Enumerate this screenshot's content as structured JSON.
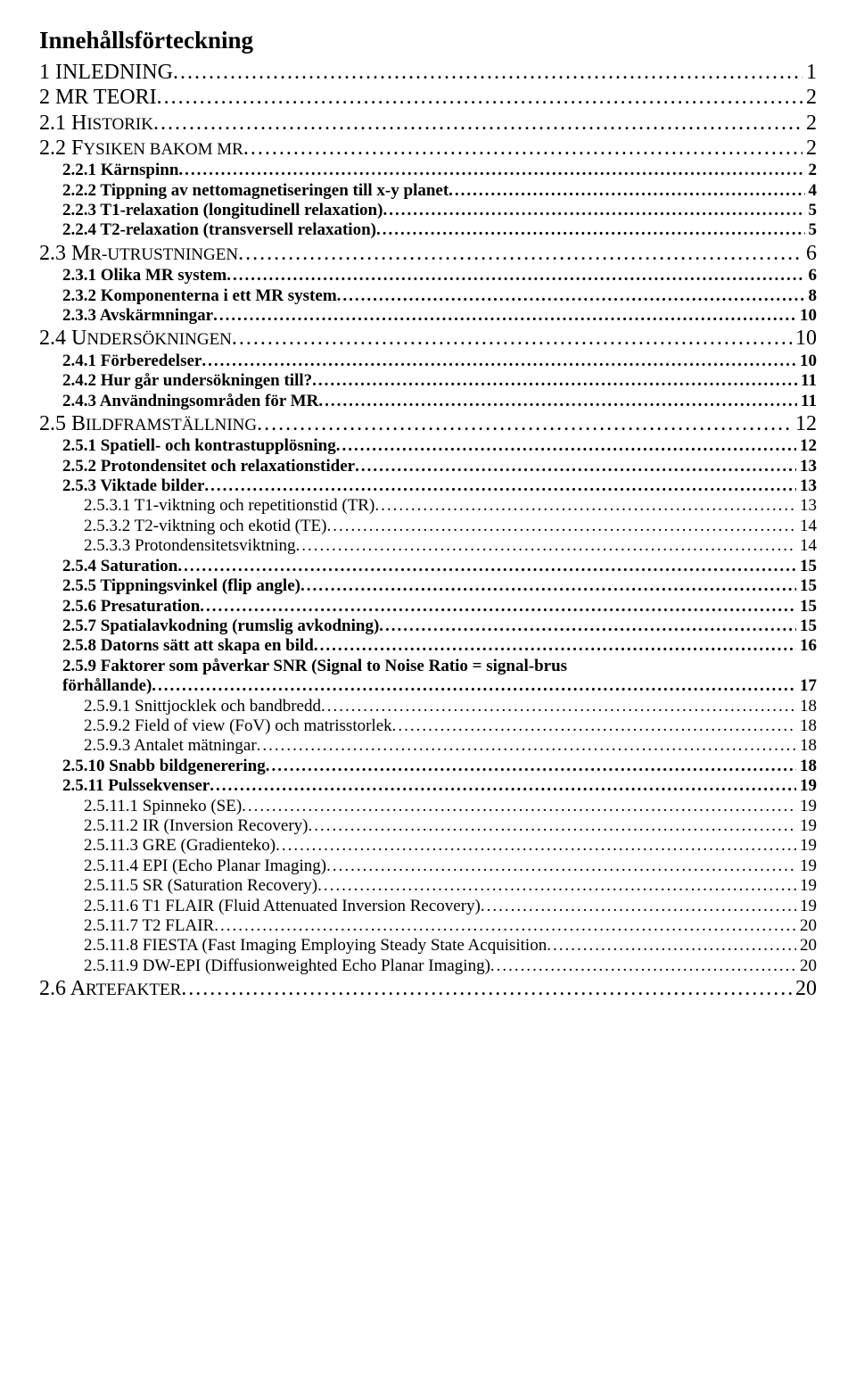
{
  "title": "Innehållsförteckning",
  "entries": [
    {
      "lvl": 0,
      "label": "1 INLEDNING",
      "page": "1"
    },
    {
      "lvl": 0,
      "label": "2 MR TEORI",
      "page": "2"
    },
    {
      "lvl": 1,
      "sc": true,
      "num": "2.1",
      "text": "HISTORIK",
      "page": "2"
    },
    {
      "lvl": 1,
      "sc": true,
      "num": "2.2",
      "text": "FYSIKEN BAKOM MR",
      "page": "2"
    },
    {
      "lvl": 2,
      "label": "2.2.1 Kärnspinn",
      "page": "2"
    },
    {
      "lvl": 2,
      "label": "2.2.2 Tippning av nettomagnetiseringen till x-y planet",
      "page": "4"
    },
    {
      "lvl": 2,
      "label": "2.2.3 T1-relaxation (longitudinell relaxation)",
      "page": "5"
    },
    {
      "lvl": 2,
      "label": "2.2.4 T2-relaxation (transversell relaxation)",
      "page": "5"
    },
    {
      "lvl": 1,
      "sc": true,
      "num": "2.3",
      "text": "MR-UTRUSTNINGEN",
      "page": "6"
    },
    {
      "lvl": 2,
      "label": "2.3.1 Olika MR system",
      "page": "6"
    },
    {
      "lvl": 2,
      "label": "2.3.2 Komponenterna i ett MR system",
      "page": "8"
    },
    {
      "lvl": 2,
      "label": "2.3.3 Avskärmningar",
      "page": "10"
    },
    {
      "lvl": 1,
      "sc": true,
      "num": "2.4",
      "text": "UNDERSÖKNINGEN",
      "page": "10"
    },
    {
      "lvl": 2,
      "label": "2.4.1 Förberedelser",
      "page": "10"
    },
    {
      "lvl": 2,
      "label": "2.4.2 Hur går undersökningen till?",
      "page": "11"
    },
    {
      "lvl": 2,
      "label": "2.4.3 Användningsområden för MR",
      "page": "11"
    },
    {
      "lvl": 1,
      "sc": true,
      "num": "2.5",
      "text": "BILDFRAMSTÄLLNING",
      "page": "12"
    },
    {
      "lvl": 2,
      "label": "2.5.1 Spatiell- och kontrastupplösning",
      "page": "12"
    },
    {
      "lvl": 2,
      "label": "2.5.2 Protondensitet och relaxationstider",
      "page": "13"
    },
    {
      "lvl": 2,
      "label": "2.5.3 Viktade bilder",
      "page": "13"
    },
    {
      "lvl": 3,
      "label": "2.5.3.1 T1-viktning och repetitionstid (TR)",
      "page": "13"
    },
    {
      "lvl": 3,
      "label": "2.5.3.2 T2-viktning och ekotid (TE)",
      "page": "14"
    },
    {
      "lvl": 3,
      "label": "2.5.3.3 Protondensitetsviktning",
      "page": "14"
    },
    {
      "lvl": 2,
      "label": "2.5.4 Saturation",
      "page": "15"
    },
    {
      "lvl": 2,
      "label": "2.5.5 Tippningsvinkel (flip angle)",
      "page": "15"
    },
    {
      "lvl": 2,
      "label": "2.5.6 Presaturation",
      "page": "15"
    },
    {
      "lvl": 2,
      "label": "2.5.7 Spatialavkodning (rumslig avkodning)",
      "page": "15"
    },
    {
      "lvl": 2,
      "label": "2.5.8 Datorns sätt att skapa en bild",
      "page": "16"
    },
    {
      "lvl": 2,
      "wrap": true,
      "label1": "2.5.9 Faktorer som påverkar SNR (Signal to Noise Ratio = signal-brus",
      "label2": "förhållande)",
      "page": "17"
    },
    {
      "lvl": 3,
      "label": "2.5.9.1 Snittjocklek och bandbredd",
      "page": "18"
    },
    {
      "lvl": 3,
      "label": "2.5.9.2 Field of view (FoV) och matrisstorlek",
      "page": "18"
    },
    {
      "lvl": 3,
      "label": "2.5.9.3 Antalet mätningar",
      "page": "18"
    },
    {
      "lvl": 2,
      "label": "2.5.10 Snabb bildgenerering",
      "page": "18"
    },
    {
      "lvl": 2,
      "label": "2.5.11 Pulssekvenser",
      "page": "19"
    },
    {
      "lvl": 3,
      "label": "2.5.11.1 Spinneko (SE)",
      "page": "19"
    },
    {
      "lvl": 3,
      "label": "2.5.11.2 IR (Inversion Recovery)",
      "page": "19"
    },
    {
      "lvl": 3,
      "label": "2.5.11.3 GRE (Gradienteko)",
      "page": "19"
    },
    {
      "lvl": 3,
      "label": "2.5.11.4 EPI (Echo Planar Imaging)",
      "page": "19"
    },
    {
      "lvl": 3,
      "label": "2.5.11.5 SR (Saturation Recovery)",
      "page": "19"
    },
    {
      "lvl": 3,
      "label": "2.5.11.6 T1 FLAIR (Fluid Attenuated Inversion Recovery)",
      "page": "19"
    },
    {
      "lvl": 3,
      "label": "2.5.11.7 T2 FLAIR",
      "page": "20"
    },
    {
      "lvl": 3,
      "label": "2.5.11.8 FIESTA (Fast Imaging Employing Steady State Acquisition",
      "page": "20"
    },
    {
      "lvl": 3,
      "label": "2.5.11.9 DW-EPI (Diffusionweighted Echo Planar Imaging)",
      "page": "20"
    },
    {
      "lvl": 1,
      "sc": true,
      "num": "2.6",
      "text": "ARTEFAKTER",
      "page": "20"
    }
  ]
}
